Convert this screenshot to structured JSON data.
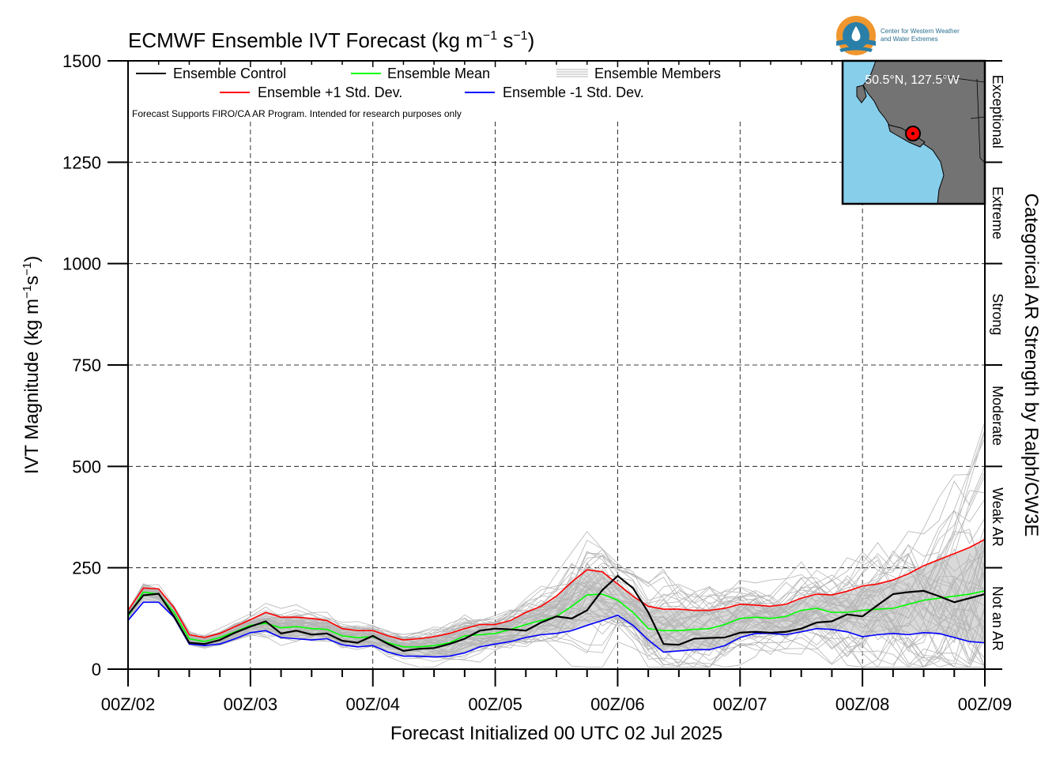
{
  "chart_data": {
    "type": "line",
    "title": "ECMWF Ensemble IVT Forecast (kg m⁻¹ s⁻¹)",
    "title_main": "ECMWF Ensemble IVT Forecast (kg m",
    "title_exp1": "−1",
    "title_mid": " s",
    "title_exp2": "−1",
    "title_end": ")",
    "xlabel": "Forecast Initialized 00 UTC 02 Jul 2025",
    "ylabel": "IVT Magnitude (kg m⁻¹s⁻¹)",
    "ylabel_main": "IVT Magnitude (kg m",
    "ylabel_exp1": "−1",
    "ylabel_mid": "s",
    "ylabel_exp2": "−1",
    "ylabel_end": ")",
    "right_label": "Categorical AR Strength by Ralph/CW3E",
    "note": "Forecast Supports FIRO/CA AR Program. Intended for research purposes only",
    "location": "50.5°N, 127.5°W",
    "logo_line1": "Center for Western Weather",
    "logo_line2": "and Water Extremes",
    "x_unit": "hours since 00Z/02",
    "xlim": [
      0,
      168
    ],
    "ylim": [
      0,
      1500
    ],
    "x_ticks": [
      0,
      24,
      48,
      72,
      96,
      120,
      144,
      168
    ],
    "x_tick_labels": [
      "00Z/02",
      "00Z/03",
      "00Z/04",
      "00Z/05",
      "00Z/06",
      "00Z/07",
      "00Z/08",
      "00Z/09"
    ],
    "y_ticks": [
      0,
      250,
      500,
      750,
      1000,
      1250,
      1500
    ],
    "y_tick_labels": [
      "0",
      "250",
      "500",
      "750",
      "1000",
      "1250",
      "1500"
    ],
    "grid": true,
    "legend_position": "top-left",
    "categories": [
      {
        "label": "Not an AR",
        "from": 0,
        "to": 250
      },
      {
        "label": "Weak AR",
        "from": 250,
        "to": 500
      },
      {
        "label": "Moderate",
        "from": 500,
        "to": 750
      },
      {
        "label": "Strong",
        "from": 750,
        "to": 1000
      },
      {
        "label": "Extreme",
        "from": 1000,
        "to": 1250
      },
      {
        "label": "Exceptional",
        "from": 1250,
        "to": 1500
      }
    ],
    "x": [
      0,
      3,
      6,
      9,
      12,
      15,
      18,
      21,
      24,
      27,
      30,
      33,
      36,
      39,
      42,
      45,
      48,
      51,
      54,
      57,
      60,
      63,
      66,
      69,
      72,
      75,
      78,
      81,
      84,
      87,
      90,
      93,
      96,
      99,
      102,
      105,
      108,
      111,
      114,
      117,
      120,
      123,
      126,
      129,
      132,
      135,
      138,
      141,
      144,
      147,
      150,
      153,
      156,
      159,
      162,
      165,
      168
    ],
    "series": [
      {
        "name": "Ensemble Control",
        "color": "#000000",
        "values": [
          135,
          182,
          186,
          130,
          65,
          62,
          72,
          90,
          105,
          118,
          88,
          95,
          85,
          88,
          70,
          65,
          82,
          62,
          45,
          50,
          52,
          62,
          75,
          95,
          100,
          98,
          95,
          115,
          130,
          125,
          145,
          195,
          230,
          200,
          140,
          62,
          60,
          75,
          77,
          78,
          90,
          92,
          90,
          92,
          100,
          115,
          118,
          135,
          130,
          158,
          185,
          190,
          193,
          180,
          165,
          175,
          185
        ]
      },
      {
        "name": "Ensemble Mean",
        "color": "#00ff00",
        "values": [
          130,
          190,
          185,
          140,
          75,
          68,
          78,
          92,
          108,
          113,
          102,
          105,
          100,
          98,
          82,
          78,
          80,
          65,
          55,
          55,
          58,
          65,
          82,
          85,
          88,
          98,
          110,
          120,
          130,
          155,
          183,
          185,
          170,
          140,
          100,
          95,
          95,
          98,
          100,
          110,
          125,
          128,
          125,
          130,
          145,
          150,
          140,
          140,
          145,
          148,
          150,
          160,
          170,
          175,
          180,
          185,
          193
        ]
      },
      {
        "name": "Ensemble +1 Std. Dev.",
        "color": "#ff0000",
        "values": [
          145,
          200,
          198,
          152,
          85,
          78,
          88,
          105,
          122,
          140,
          128,
          128,
          125,
          120,
          100,
          95,
          95,
          82,
          72,
          75,
          80,
          88,
          100,
          110,
          110,
          120,
          140,
          155,
          180,
          215,
          245,
          240,
          210,
          180,
          155,
          148,
          148,
          145,
          145,
          150,
          160,
          158,
          155,
          160,
          175,
          185,
          183,
          192,
          205,
          210,
          220,
          235,
          255,
          270,
          285,
          300,
          320
        ]
      },
      {
        "name": "Ensemble -1 Std. Dev.",
        "color": "#0000ff",
        "values": [
          120,
          165,
          165,
          128,
          62,
          58,
          62,
          75,
          90,
          95,
          78,
          75,
          72,
          75,
          60,
          55,
          58,
          42,
          32,
          32,
          30,
          32,
          40,
          55,
          62,
          68,
          78,
          85,
          88,
          95,
          108,
          120,
          133,
          108,
          72,
          42,
          45,
          48,
          48,
          58,
          78,
          88,
          88,
          85,
          92,
          100,
          98,
          92,
          80,
          85,
          88,
          85,
          90,
          88,
          78,
          68,
          65
        ]
      }
    ],
    "members_label": "Ensemble Members",
    "members_color": "#b5b5b5",
    "members_count": 50
  }
}
